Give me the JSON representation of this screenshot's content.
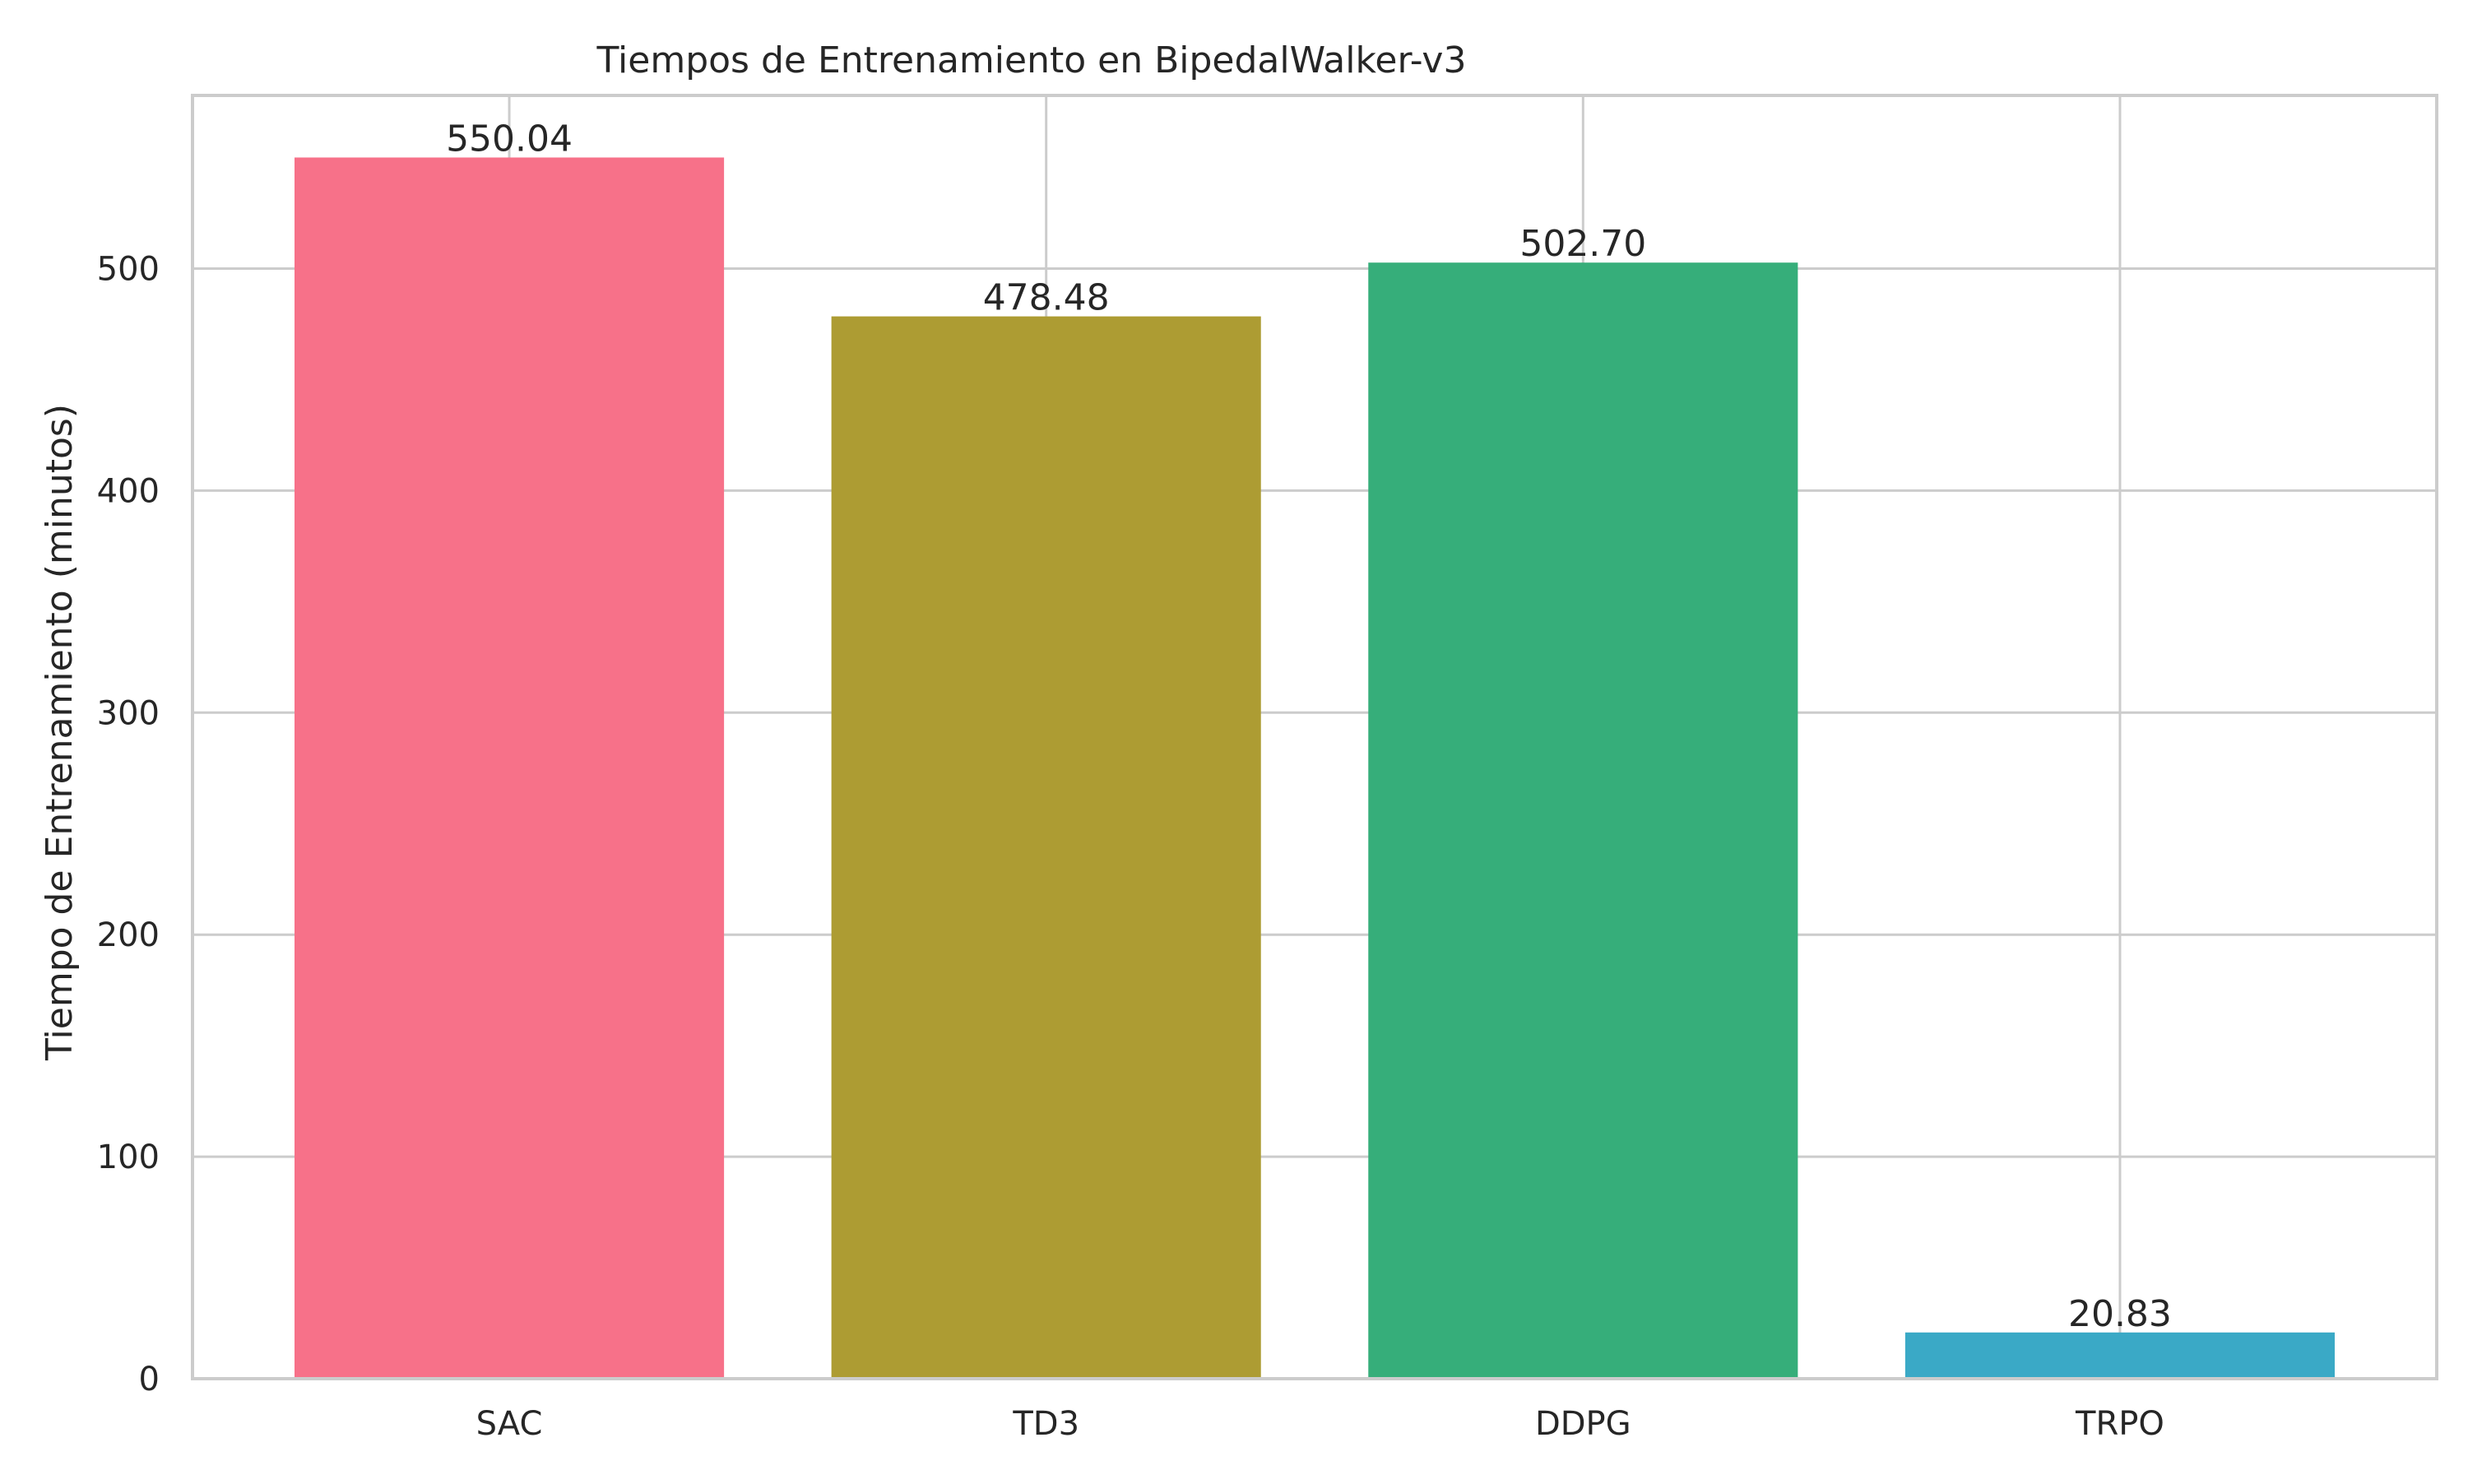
{
  "chart_data": {
    "type": "bar",
    "title": "Tiempos de Entrenamiento en BipedalWalker-v3",
    "xlabel": "",
    "ylabel": "Tiempo de Entrenamiento (minutos)",
    "categories": [
      "SAC",
      "TD3",
      "DDPG",
      "TRPO"
    ],
    "values": [
      550.04,
      478.48,
      502.7,
      20.83
    ],
    "value_labels": [
      "550.04",
      "478.48",
      "502.70",
      "20.83"
    ],
    "colors": [
      "#f77189",
      "#ad9c33",
      "#36ae7a",
      "#3aa9c6"
    ],
    "ylim": [
      0,
      578
    ],
    "yticks": [
      0,
      100,
      200,
      300,
      400,
      500
    ],
    "ytick_labels": [
      "0",
      "100",
      "200",
      "300",
      "400",
      "500"
    ],
    "grid": true,
    "style": {
      "background": "#ffffff",
      "grid_color": "#cccccc",
      "spine_color": "#cccccc",
      "text_color": "#262626"
    }
  }
}
